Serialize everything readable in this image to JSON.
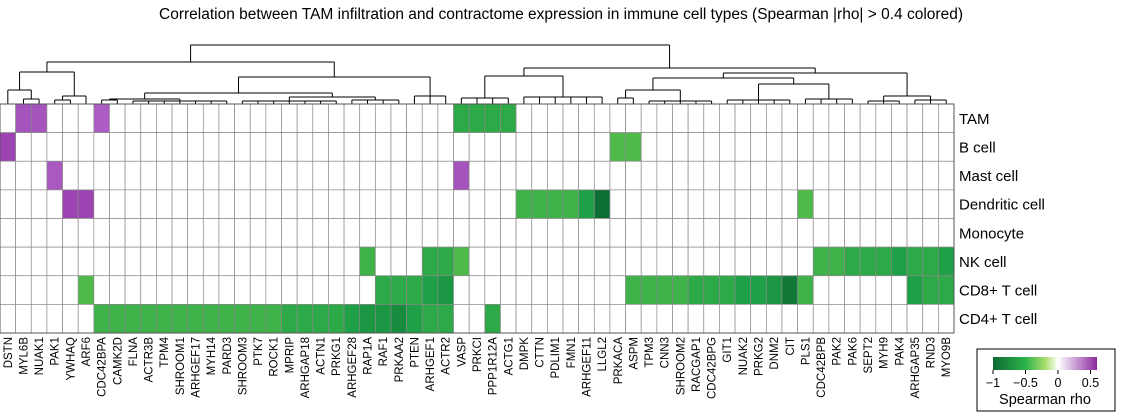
{
  "chart_data": {
    "type": "heatmap",
    "title": "Correlation between TAM infiltration and contractome expression in immune cell types (Spearman |rho| > 0.4 colored)",
    "rows": [
      "TAM",
      "B cell",
      "Mast cell",
      "Dendritic cell",
      "Monocyte",
      "NK cell",
      "CD8+ T cell",
      "CD4+ T cell"
    ],
    "columns": [
      "DSTN",
      "MYL6B",
      "NUAK1",
      "PAK1",
      "YWHAQ",
      "ARF6",
      "CDC42BPA",
      "CAMK2D",
      "FLNA",
      "ACTR3B",
      "TPM4",
      "SHROOM1",
      "ARHGEF17",
      "MYH14",
      "PARD3",
      "SHROOM3",
      "PTK7",
      "ROCK1",
      "MPRIP",
      "ARHGAP18",
      "ACTN1",
      "PRKG1",
      "ARHGEF28",
      "RAP1A",
      "RAF1",
      "PRKAA2",
      "PTEN",
      "ARHGEF1",
      "ACTR2",
      "VASP",
      "PRKCI",
      "PPP1R12A",
      "ACTG1",
      "DMPK",
      "CTTN",
      "PDLIM1",
      "FMN1",
      "ARHGEF11",
      "LLGL2",
      "PRKACA",
      "ASPM",
      "TPM3",
      "CNN3",
      "SHROOM2",
      "RACGAP1",
      "CDC42BPG",
      "GIT1",
      "NUAK2",
      "PRKG2",
      "DNM2",
      "CIT",
      "PLS1",
      "CDC42BPB",
      "PAK2",
      "PAK6",
      "SEPT2",
      "MYH9",
      "PAK4",
      "ARHGAP35",
      "RND3",
      "MYO9B"
    ],
    "values": [
      [
        0,
        0.45,
        0.45,
        0,
        0,
        0,
        0.42,
        0,
        0,
        0,
        0,
        0,
        0,
        0,
        0,
        0,
        0,
        0,
        0,
        0,
        0,
        0,
        0,
        0,
        0,
        0,
        0,
        0,
        0,
        -0.55,
        -0.55,
        -0.55,
        -0.55,
        0,
        0,
        0,
        0,
        0,
        0,
        0,
        0,
        0,
        0,
        0,
        0,
        0,
        0,
        0,
        0,
        0,
        0,
        0,
        0,
        0,
        0,
        0,
        0,
        0,
        0,
        0,
        0
      ],
      [
        0.5,
        0,
        0,
        0,
        0,
        0,
        0,
        0,
        0,
        0,
        0,
        0,
        0,
        0,
        0,
        0,
        0,
        0,
        0,
        0,
        0,
        0,
        0,
        0,
        0,
        0,
        0,
        0,
        0,
        0,
        0,
        0,
        0,
        0,
        0,
        0,
        0,
        0,
        0,
        -0.45,
        -0.45,
        0,
        0,
        0,
        0,
        0,
        0,
        0,
        0,
        0,
        0,
        0,
        0,
        0,
        0,
        0,
        0,
        0,
        0,
        0,
        0
      ],
      [
        0,
        0,
        0,
        0.43,
        0,
        0,
        0,
        0,
        0,
        0,
        0,
        0,
        0,
        0,
        0,
        0,
        0,
        0,
        0,
        0,
        0,
        0,
        0,
        0,
        0,
        0,
        0,
        0,
        0,
        0.45,
        0,
        0,
        0,
        0,
        0,
        0,
        0,
        0,
        0,
        0,
        0,
        0,
        0,
        0,
        0,
        0,
        0,
        0,
        0,
        0,
        0,
        0,
        0,
        0,
        0,
        0,
        0,
        0,
        0,
        0,
        0
      ],
      [
        0,
        0,
        0,
        0,
        0.5,
        0.5,
        0,
        0,
        0,
        0,
        0,
        0,
        0,
        0,
        0,
        0,
        0,
        0,
        0,
        0,
        0,
        0,
        0,
        0,
        0,
        0,
        0,
        0,
        0,
        0,
        0,
        0,
        0,
        -0.5,
        -0.5,
        -0.5,
        -0.5,
        -0.6,
        -0.85,
        0,
        0,
        0,
        0,
        0,
        0,
        0,
        0,
        0,
        0,
        0,
        0,
        -0.45,
        0,
        0,
        0,
        0,
        0,
        0,
        0,
        0,
        0
      ],
      [
        0,
        0,
        0,
        0,
        0,
        0,
        0,
        0,
        0,
        0,
        0,
        0,
        0,
        0,
        0,
        0,
        0,
        0,
        0,
        0,
        0,
        0,
        0,
        0,
        0,
        0,
        0,
        0,
        0,
        0,
        0,
        0,
        0,
        0,
        0,
        0,
        0,
        0,
        0,
        0,
        0,
        0,
        0,
        0,
        0,
        0,
        0,
        0,
        0,
        0,
        0,
        0,
        0,
        0,
        0,
        0,
        0,
        0,
        0,
        0,
        0
      ],
      [
        0,
        0,
        0,
        0,
        0,
        0,
        0,
        0,
        0,
        0,
        0,
        0,
        0,
        0,
        0,
        0,
        0,
        0,
        0,
        0,
        0,
        0,
        0,
        -0.5,
        0,
        0,
        0,
        -0.55,
        -0.55,
        -0.45,
        0,
        0,
        0,
        0,
        0,
        0,
        0,
        0,
        0,
        0,
        0,
        0,
        0,
        0,
        0,
        0,
        0,
        0,
        0,
        0,
        0,
        0,
        -0.5,
        -0.5,
        -0.55,
        -0.55,
        -0.55,
        -0.6,
        -0.55,
        -0.55,
        -0.6
      ],
      [
        0,
        0,
        0,
        0,
        0,
        -0.45,
        0,
        0,
        0,
        0,
        0,
        0,
        0,
        0,
        0,
        0,
        0,
        0,
        0,
        0,
        0,
        0,
        0,
        0,
        -0.55,
        -0.55,
        -0.55,
        -0.6,
        -0.65,
        0,
        0,
        0,
        0,
        0,
        0,
        0,
        0,
        0,
        0,
        0,
        -0.5,
        -0.5,
        -0.5,
        -0.5,
        -0.55,
        -0.55,
        -0.55,
        -0.6,
        -0.6,
        -0.65,
        -0.8,
        -0.5,
        0,
        0,
        0,
        0,
        0,
        0,
        -0.6,
        -0.55,
        -0.55
      ],
      [
        0,
        0,
        0,
        0,
        0,
        0,
        -0.5,
        -0.5,
        -0.5,
        -0.5,
        -0.5,
        -0.5,
        -0.5,
        -0.5,
        -0.5,
        -0.5,
        -0.5,
        -0.5,
        -0.55,
        -0.55,
        -0.55,
        -0.55,
        -0.6,
        -0.65,
        -0.65,
        -0.7,
        -0.6,
        -0.55,
        -0.55,
        0,
        0,
        -0.55,
        0,
        0,
        0,
        0,
        0,
        0,
        0,
        0,
        0,
        0,
        0,
        0,
        0,
        0,
        0,
        0,
        0,
        0,
        0,
        0,
        0,
        0,
        0,
        0,
        0,
        0,
        0,
        0,
        0
      ]
    ],
    "colorbar": {
      "title": "Spearman rho",
      "ticks": [
        "−1",
        "−0.5",
        "0",
        "0.5"
      ],
      "tick_values": [
        -1,
        -0.5,
        0,
        0.5
      ],
      "range": [
        -1,
        0.6
      ],
      "colors": {
        "strong_negative": "#0d6b33",
        "negative": "#2bb24b",
        "weak_negative": "#a6dd6b",
        "zero": "#ffffff",
        "positive": "#9b3fb5",
        "strong_positive": "#8b2a9e"
      }
    },
    "dendrogram": true,
    "grid": true
  }
}
